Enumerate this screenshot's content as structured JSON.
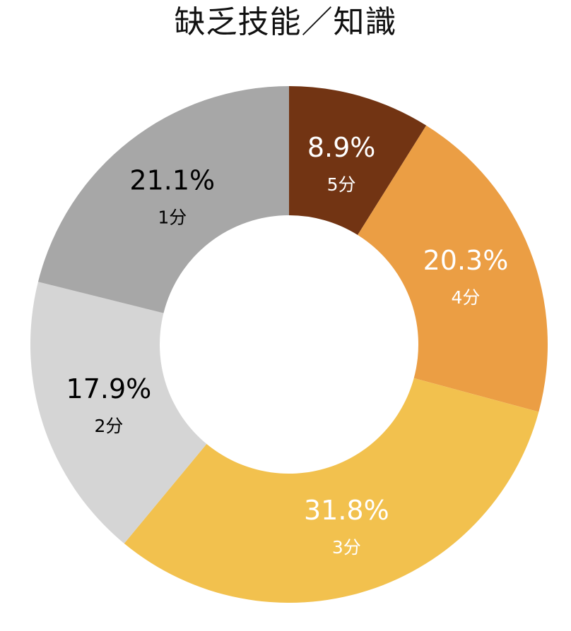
{
  "chart_data": {
    "type": "pie",
    "title": "缺乏技能／知識",
    "categories": [
      "5分",
      "4分",
      "3分",
      "2分",
      "1分"
    ],
    "values": [
      8.9,
      20.3,
      31.8,
      17.9,
      21.1
    ],
    "value_labels": [
      "8.9%",
      "20.3%",
      "31.8%",
      "17.9%",
      "21.1%"
    ],
    "colors": [
      "#723413",
      "#EB9E44",
      "#F2C14E",
      "#D5D5D5",
      "#A7A7A7"
    ],
    "label_colors": [
      "#FFFFFF",
      "#FFFFFF",
      "#FFFFFF",
      "#000000",
      "#000000"
    ],
    "start_angle_deg": 0,
    "direction": "clockwise",
    "donut": true,
    "legend": "none"
  }
}
